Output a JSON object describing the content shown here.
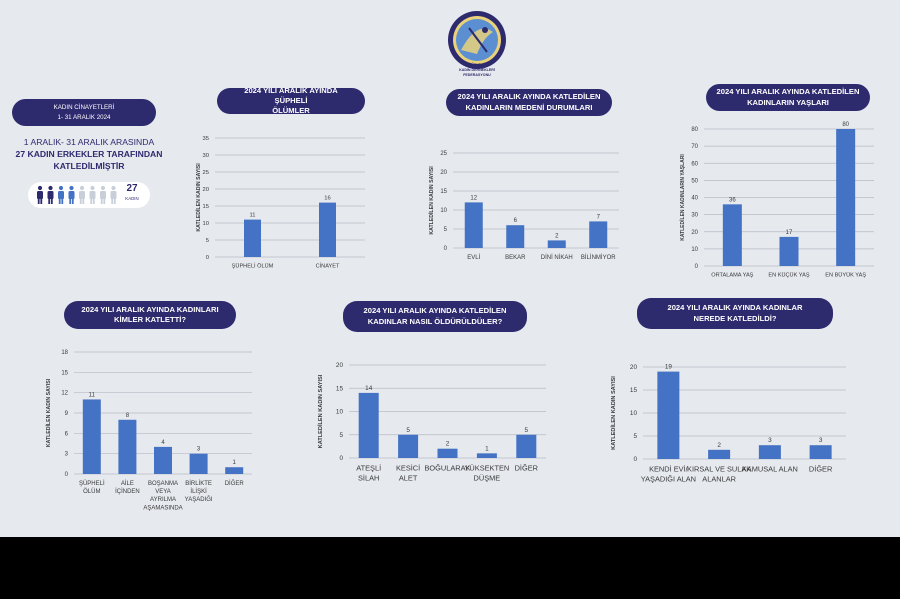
{
  "colors": {
    "navy": "#2e2a6e",
    "bar": "#4472c4",
    "figure_light": "#c9cfd9"
  },
  "logo": {
    "org_text": "TÜRKİYE\nKADIN DERNEKLERİ\nFEDERASYONU"
  },
  "sidebar": {
    "title_line1": "KADIN CİNAYETLERİ",
    "title_line2": "1- 31 ARALIK 2024",
    "range_text": "1 ARALIK- 31 ARALIK ARASINDA",
    "headline": "27 KADIN ERKEKLER TARAFINDAN\nKATLEDİLMİŞTİR",
    "count": "27",
    "count_unit": "KADIN",
    "figures_dark": 2,
    "figures_mid": 2,
    "figures_total": 8
  },
  "chart_data": [
    {
      "id": "suspicious",
      "type": "bar",
      "title": "2024 YILI ARALIK AYINDA ŞÜPHELİ\nÖLÜMLER",
      "ylabel": "KATLEDİLEN KADIN SAYISI",
      "categories": [
        "ŞÜPHELİ ÖLÜM",
        "CİNAYET"
      ],
      "values": [
        11,
        16
      ],
      "ylim": [
        0,
        35
      ],
      "yticks": [
        0,
        5,
        10,
        15,
        20,
        25,
        30,
        35
      ],
      "grid": true
    },
    {
      "id": "marital",
      "type": "bar",
      "title": "2024 YILI ARALIK AYINDA KATLEDİLEN\nKADINLARIN MEDENİ DURUMLARI",
      "ylabel": "KATLEDİLEN KADIN SAYISI",
      "categories": [
        "EVLİ",
        "BEKAR",
        "DİNİ NİKAH",
        "BİLİNMİYOR"
      ],
      "values": [
        12,
        6,
        2,
        7
      ],
      "ylim": [
        0,
        25
      ],
      "yticks": [
        0,
        5,
        10,
        15,
        20,
        25
      ],
      "grid": true
    },
    {
      "id": "ages",
      "type": "bar",
      "title": "2024 YILI ARALIK AYINDA KATLEDİLEN\nKADINLARIN YAŞLARI",
      "ylabel": "KATLEDİLEN KADINLARIN YAŞLARI",
      "categories": [
        "ORTALAMA YAŞ",
        "EN KÜÇÜK YAŞ",
        "EN BÜYÜK YAŞ"
      ],
      "values": [
        36,
        17,
        80
      ],
      "ylim": [
        0,
        80
      ],
      "yticks": [
        0,
        10,
        20,
        30,
        40,
        50,
        60,
        70,
        80
      ],
      "grid": true
    },
    {
      "id": "perpetrators",
      "type": "bar",
      "title": "2024 YILI ARALIK AYINDA KADINLARI\nKİMLER KATLETTİ?",
      "ylabel": "KATLEDİLEN KADIN SAYISI",
      "categories": [
        "ŞÜPHELİ\nÖLÜM",
        "AİLE\nİÇİNDEN",
        "BOŞANMA\nVEYA\nAYRILMA\nAŞAMASINDA",
        "BİRLİKTE\nİLİŞKİ\nYAŞADIĞI",
        "DİĞER"
      ],
      "values": [
        11,
        8,
        4,
        3,
        1
      ],
      "ylim": [
        0,
        18
      ],
      "yticks": [
        0,
        3,
        6,
        9,
        12,
        15,
        18
      ],
      "grid": true
    },
    {
      "id": "methods",
      "type": "bar",
      "title": "2024 YILI ARALIK AYINDA KATLEDİLEN\nKADINLAR NASIL ÖLDÜRÜLDÜLER?",
      "ylabel": "KATLEDİLEN KADIN SAYISI",
      "categories": [
        "ATEŞLİ\nSİLAH",
        "KESİCİ\nALET",
        "BOĞULARAK",
        "YÜKSEKTEN\nDÜŞME",
        "DİĞER"
      ],
      "values": [
        14,
        5,
        2,
        1,
        5
      ],
      "ylim": [
        0,
        20
      ],
      "yticks": [
        0,
        5,
        10,
        15,
        20
      ],
      "grid": true
    },
    {
      "id": "places",
      "type": "bar",
      "title": "2024 YILI ARALIK AYINDA KADINLAR\nNEREDE KATLEDİLDİ?",
      "ylabel": "KATLEDİLEN KADIN SAYISI",
      "categories": [
        "KENDİ EVİ/\nYAŞADIĞI ALAN",
        "KIRSAL VE SULAK\nALANLAR",
        "KAMUSAL ALAN",
        "DİĞER"
      ],
      "values": [
        19,
        2,
        3,
        3
      ],
      "ylim": [
        0,
        20
      ],
      "yticks": [
        0,
        5,
        10,
        15,
        20
      ],
      "grid": true
    }
  ]
}
